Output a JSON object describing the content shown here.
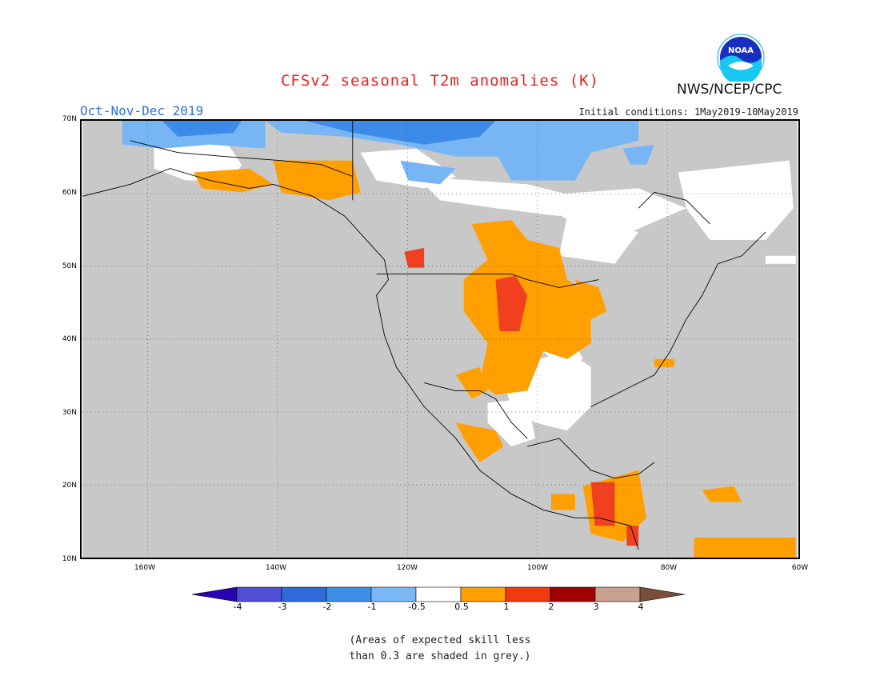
{
  "header": {
    "title": "CFSv2 seasonal T2m anomalies (K)",
    "period": "Oct-Nov-Dec 2019",
    "initial_conditions": "Initial conditions: 1May2019-10May2019",
    "agency": "NWS/NCEP/CPC",
    "logo_text": "NOAA"
  },
  "map": {
    "lat_labels": [
      "70N",
      "60N",
      "50N",
      "40N",
      "30N",
      "20N",
      "10N"
    ],
    "lon_labels": [
      "160W",
      "140W",
      "120W",
      "100W",
      "80W",
      "60W"
    ],
    "lon_range": [
      -170,
      -60
    ],
    "lat_range": [
      10,
      70
    ],
    "colors": {
      "grey": "#c8c8c8",
      "white": "#ffffff",
      "lightblue": "#77b5f5",
      "blue": "#3d8be8",
      "darkblue": "#1f5fd0",
      "orange": "#ff9f00",
      "red": "#f04020",
      "darkred": "#a00000"
    }
  },
  "colorbar": {
    "labels": [
      "-4",
      "-3",
      "-2",
      "-1",
      "-0.5",
      "0.5",
      "1",
      "2",
      "3",
      "4"
    ],
    "colors": [
      "#2a00b4",
      "#4f4fd6",
      "#2f6ad8",
      "#3f8ee8",
      "#7ab8f5",
      "#ffffff",
      "#ff9f00",
      "#f03a10",
      "#a00000",
      "#c8a090",
      "#7a4f3a"
    ]
  },
  "note": {
    "line1": "(Areas of expected skill less",
    "line2": "than 0.3 are shaded in grey.)"
  }
}
